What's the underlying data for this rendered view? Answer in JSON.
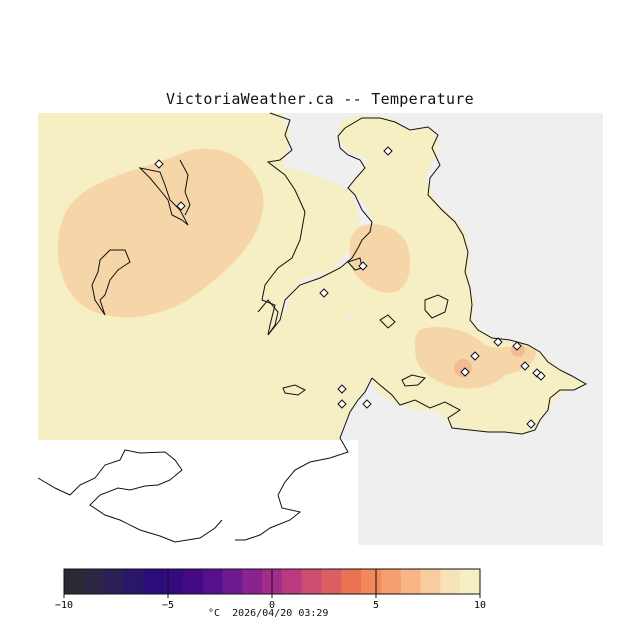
{
  "title": "VictoriaWeather.ca -- Temperature",
  "legend": {
    "unit": "°C",
    "min": -10,
    "max": 10,
    "ticks": [
      -10,
      -5,
      0,
      5,
      10
    ],
    "colors": [
      "#2b2a33",
      "#2e2645",
      "#2c1f58",
      "#2a176a",
      "#2a0d78",
      "#330a80",
      "#440a85",
      "#56108a",
      "#6d1a8e",
      "#8a2290",
      "#a52d8a",
      "#b93a7e",
      "#cc4d70",
      "#dc5e63",
      "#ec7254",
      "#f4885d",
      "#f69f6e",
      "#f8b586",
      "#f8cca0",
      "#f6e3b8",
      "#f7efc4"
    ]
  },
  "timestamp": "2026/04/20 03:29",
  "colors": {
    "land": "#f6efc3",
    "warm": "#f6d5a8",
    "warmer": "#f2bb93",
    "outside": "#efefef",
    "coast": "#111111"
  },
  "stations": {
    "count": 20,
    "icon": "diamond-icon"
  }
}
